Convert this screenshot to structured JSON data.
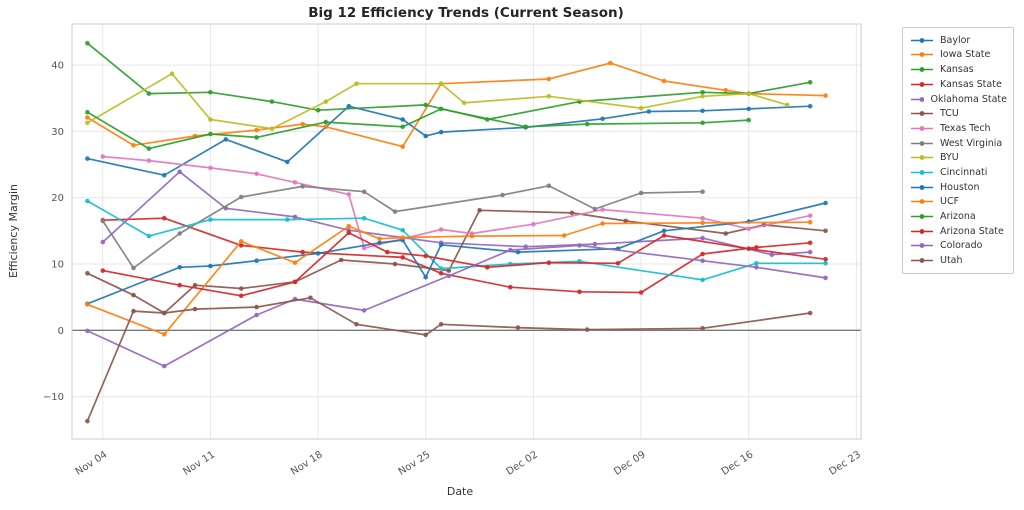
{
  "chart_data": {
    "type": "line",
    "title": "Big 12 Efficiency Trends (Current Season)",
    "xlabel": "Date",
    "ylabel": "Efficiency Margin",
    "x_unit": "days since Nov 1",
    "xlim": [
      1,
      52.3
    ],
    "ylim": [
      -16.4,
      46.2
    ],
    "grid": true,
    "zero_line": true,
    "legend_position": "outside-right",
    "x_ticks": [
      {
        "day": 3,
        "label": "Nov 04"
      },
      {
        "day": 10,
        "label": "Nov 11"
      },
      {
        "day": 17,
        "label": "Nov 18"
      },
      {
        "day": 24,
        "label": "Nov 25"
      },
      {
        "day": 31,
        "label": "Dec 02"
      },
      {
        "day": 38,
        "label": "Dec 09"
      },
      {
        "day": 45,
        "label": "Dec 16"
      },
      {
        "day": 52,
        "label": "Dec 23"
      }
    ],
    "y_ticks": [
      {
        "v": -10,
        "label": "−10"
      },
      {
        "v": 0,
        "label": "0"
      },
      {
        "v": 10,
        "label": "10"
      },
      {
        "v": 20,
        "label": "20"
      },
      {
        "v": 30,
        "label": "30"
      },
      {
        "v": 40,
        "label": "40"
      }
    ],
    "colors": {
      "grid": "#e7e7e7",
      "spine": "#cccccc",
      "zero_line": "#4d4d4d",
      "title": "#262626",
      "tick": "#555555"
    },
    "series": [
      {
        "name": "Baylor",
        "color": "#1f77b4",
        "points": [
          [
            2,
            25.9
          ],
          [
            7,
            23.4
          ],
          [
            11,
            28.8
          ],
          [
            15,
            25.4
          ],
          [
            19,
            33.8
          ],
          [
            22.5,
            31.8
          ],
          [
            24,
            29.3
          ],
          [
            25,
            29.9
          ],
          [
            30.5,
            30.6
          ],
          [
            35.5,
            31.9
          ],
          [
            38.5,
            33.0
          ],
          [
            42,
            33.1
          ],
          [
            45,
            33.4
          ],
          [
            49,
            33.8
          ]
        ]
      },
      {
        "name": "Iowa State",
        "color": "#ff7f0e",
        "points": [
          [
            2,
            32.1
          ],
          [
            5,
            27.9
          ],
          [
            9,
            29.3
          ],
          [
            13,
            30.2
          ],
          [
            16,
            31.1
          ],
          [
            17.5,
            30.7
          ],
          [
            22.5,
            27.7
          ],
          [
            25,
            37.2
          ],
          [
            32,
            37.9
          ],
          [
            36,
            40.3
          ],
          [
            39.5,
            37.6
          ],
          [
            43.5,
            36.2
          ],
          [
            45,
            35.7
          ],
          [
            50,
            35.4
          ]
        ]
      },
      {
        "name": "Kansas",
        "color": "#2ca02c",
        "points": [
          [
            2,
            43.3
          ],
          [
            6,
            35.7
          ],
          [
            10,
            35.9
          ],
          [
            14,
            34.5
          ],
          [
            17,
            33.2
          ],
          [
            24,
            34.0
          ],
          [
            28,
            31.8
          ],
          [
            34,
            34.5
          ],
          [
            42,
            35.9
          ],
          [
            45,
            35.7
          ],
          [
            49,
            37.4
          ]
        ]
      },
      {
        "name": "Kansas State",
        "color": "#d62728",
        "points": [
          [
            3,
            16.6
          ],
          [
            7,
            16.9
          ],
          [
            12,
            12.8
          ],
          [
            16,
            11.8
          ],
          [
            22.5,
            11.0
          ],
          [
            25,
            8.6
          ],
          [
            29.5,
            6.5
          ],
          [
            34,
            5.8
          ],
          [
            38,
            5.7
          ],
          [
            42,
            11.5
          ],
          [
            45.5,
            12.5
          ],
          [
            49,
            13.2
          ]
        ]
      },
      {
        "name": "Oklahoma State",
        "color": "#9467bd",
        "points": [
          [
            3,
            13.3
          ],
          [
            8,
            23.9
          ],
          [
            11,
            18.4
          ],
          [
            15.5,
            17.1
          ],
          [
            19,
            15.1
          ],
          [
            25,
            13.2
          ],
          [
            30.5,
            12.6
          ],
          [
            35,
            13.0
          ],
          [
            42,
            13.9
          ],
          [
            46.5,
            11.4
          ],
          [
            49,
            11.8
          ]
        ]
      },
      {
        "name": "TCU",
        "color": "#8c564b",
        "points": [
          [
            2,
            8.6
          ],
          [
            5,
            5.3
          ],
          [
            7,
            2.6
          ],
          [
            9,
            6.8
          ],
          [
            12,
            6.3
          ],
          [
            15.5,
            7.3
          ],
          [
            18.5,
            10.6
          ],
          [
            22,
            10.0
          ],
          [
            25.5,
            9.0
          ],
          [
            27.5,
            18.1
          ],
          [
            33.5,
            17.7
          ],
          [
            37,
            16.5
          ],
          [
            43.5,
            14.6
          ],
          [
            46,
            15.9
          ],
          [
            50,
            15.0
          ]
        ]
      },
      {
        "name": "Texas Tech",
        "color": "#e377c2",
        "points": [
          [
            3,
            26.2
          ],
          [
            6,
            25.6
          ],
          [
            10,
            24.5
          ],
          [
            13,
            23.6
          ],
          [
            15.5,
            22.3
          ],
          [
            19,
            20.5
          ],
          [
            20,
            12.4
          ],
          [
            25,
            15.2
          ],
          [
            27,
            14.6
          ],
          [
            31,
            16.0
          ],
          [
            35.5,
            18.2
          ],
          [
            42,
            16.9
          ],
          [
            45,
            15.3
          ],
          [
            49,
            17.3
          ]
        ]
      },
      {
        "name": "West Virginia",
        "color": "#7f7f7f",
        "points": [
          [
            3,
            16.5
          ],
          [
            5,
            9.4
          ],
          [
            8,
            14.6
          ],
          [
            12,
            20.1
          ],
          [
            16,
            21.7
          ],
          [
            20,
            20.9
          ],
          [
            22,
            17.9
          ],
          [
            29,
            20.4
          ],
          [
            32,
            21.8
          ],
          [
            35,
            18.3
          ],
          [
            38,
            20.7
          ],
          [
            42,
            20.9
          ]
        ]
      },
      {
        "name": "BYU",
        "color": "#bcbd22",
        "points": [
          [
            2,
            31.3
          ],
          [
            7.5,
            38.7
          ],
          [
            10,
            31.8
          ],
          [
            14,
            30.4
          ],
          [
            17.5,
            34.5
          ],
          [
            19.5,
            37.2
          ],
          [
            25,
            37.2
          ],
          [
            26.5,
            34.3
          ],
          [
            32,
            35.3
          ],
          [
            38,
            33.5
          ],
          [
            42,
            35.3
          ],
          [
            45,
            35.7
          ],
          [
            47.5,
            34.0
          ]
        ]
      },
      {
        "name": "Cincinnati",
        "color": "#17becf",
        "points": [
          [
            2,
            19.5
          ],
          [
            6,
            14.2
          ],
          [
            10,
            16.7
          ],
          [
            15,
            16.7
          ],
          [
            20,
            16.9
          ],
          [
            22.5,
            15.1
          ],
          [
            25,
            9.3
          ],
          [
            29.5,
            10.0
          ],
          [
            34,
            10.4
          ],
          [
            42,
            7.6
          ],
          [
            45.5,
            10.1
          ],
          [
            50,
            10.1
          ]
        ]
      },
      {
        "name": "Houston",
        "color": "#1f77b4",
        "points": [
          [
            2,
            4.0
          ],
          [
            8,
            9.5
          ],
          [
            10,
            9.7
          ],
          [
            13,
            10.5
          ],
          [
            17,
            11.6
          ],
          [
            21,
            13.2
          ],
          [
            22.5,
            13.6
          ],
          [
            24,
            8.0
          ],
          [
            25,
            12.9
          ],
          [
            30,
            11.8
          ],
          [
            36.5,
            12.3
          ],
          [
            39.5,
            15.0
          ],
          [
            45,
            16.4
          ],
          [
            50,
            19.2
          ]
        ]
      },
      {
        "name": "UCF",
        "color": "#ff7f0e",
        "points": [
          [
            2,
            3.9
          ],
          [
            7,
            -0.6
          ],
          [
            12,
            13.4
          ],
          [
            15.5,
            10.2
          ],
          [
            19,
            15.7
          ],
          [
            21,
            13.8
          ],
          [
            22.5,
            14.0
          ],
          [
            27,
            14.2
          ],
          [
            33,
            14.3
          ],
          [
            35.5,
            16.1
          ],
          [
            42,
            16.2
          ],
          [
            49,
            16.3
          ]
        ]
      },
      {
        "name": "Arizona",
        "color": "#2ca02c",
        "points": [
          [
            2,
            32.9
          ],
          [
            6,
            27.4
          ],
          [
            10,
            29.6
          ],
          [
            13,
            29.1
          ],
          [
            17.5,
            31.4
          ],
          [
            22.5,
            30.7
          ],
          [
            25,
            33.4
          ],
          [
            30.5,
            30.7
          ],
          [
            34.5,
            31.1
          ],
          [
            42,
            31.3
          ],
          [
            45,
            31.7
          ]
        ]
      },
      {
        "name": "Arizona State",
        "color": "#d62728",
        "points": [
          [
            3,
            9.0
          ],
          [
            8,
            6.8
          ],
          [
            12,
            5.2
          ],
          [
            15.5,
            7.3
          ],
          [
            19,
            14.7
          ],
          [
            21.5,
            11.8
          ],
          [
            24,
            11.2
          ],
          [
            28,
            9.5
          ],
          [
            32,
            10.2
          ],
          [
            36.5,
            10.1
          ],
          [
            39.5,
            14.3
          ],
          [
            45,
            12.3
          ],
          [
            50,
            10.7
          ]
        ]
      },
      {
        "name": "Colorado",
        "color": "#9467bd",
        "points": [
          [
            2,
            -0.1
          ],
          [
            7,
            -5.4
          ],
          [
            13,
            2.3
          ],
          [
            15.5,
            4.7
          ],
          [
            20,
            3.0
          ],
          [
            25.5,
            8.2
          ],
          [
            29.5,
            12.1
          ],
          [
            34,
            12.8
          ],
          [
            42,
            10.5
          ],
          [
            45.5,
            9.5
          ],
          [
            50,
            7.9
          ]
        ]
      },
      {
        "name": "Utah",
        "color": "#8c564b",
        "points": [
          [
            2,
            -13.7
          ],
          [
            5,
            2.9
          ],
          [
            7,
            2.6
          ],
          [
            9,
            3.2
          ],
          [
            13,
            3.5
          ],
          [
            16.5,
            4.9
          ],
          [
            19.5,
            0.9
          ],
          [
            24,
            -0.7
          ],
          [
            25,
            0.9
          ],
          [
            30,
            0.4
          ],
          [
            34.5,
            0.1
          ],
          [
            42,
            0.3
          ],
          [
            49,
            2.6
          ]
        ]
      }
    ]
  }
}
